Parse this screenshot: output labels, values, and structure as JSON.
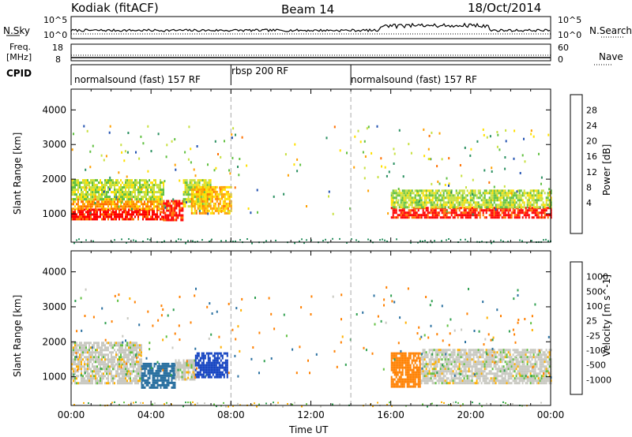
{
  "header": {
    "station": "Kodiak (fitACF)",
    "beam": "Beam 14",
    "date": "18/Oct/2014"
  },
  "noise_panel": {
    "left_label": "N.Sky",
    "left_ticks": [
      "10^5",
      "10^0"
    ],
    "right_ticks": [
      "10^5",
      "10^0"
    ],
    "right_label": "N.Search"
  },
  "freq_panel": {
    "left_label_1": "Freq.",
    "left_label_2": "[MHz]",
    "left_ticks": [
      "18",
      "8"
    ],
    "right_ticks": [
      "60",
      "0"
    ],
    "right_label": "Nave"
  },
  "cpid": {
    "label": "CPID",
    "segments": [
      {
        "name": "normalsound (fast) 157 RF",
        "start_hour": 0,
        "end_hour": 8
      },
      {
        "name": "rbsp 200 RF",
        "start_hour": 8,
        "end_hour": 14
      },
      {
        "name": "normalsound (fast) 157 RF",
        "start_hour": 14,
        "end_hour": 24
      }
    ]
  },
  "chart_data": [
    {
      "type": "heatmap",
      "title": "Power",
      "ylabel": "Slant Range [km]",
      "xlabel": "Time UT",
      "xlim_hours": [
        0,
        24
      ],
      "ylim": [
        180,
        4600
      ],
      "y_ticks": [
        1000,
        2000,
        3000,
        4000
      ],
      "colorbar": {
        "label": "Power [dB]",
        "ticks": [
          "28",
          "24",
          "20",
          "16",
          "12",
          "8",
          "4"
        ],
        "colors": [
          "#ff0000",
          "#ff7000",
          "#ffa000",
          "#ffe000",
          "#c8e040",
          "#60c040",
          "#2a9060",
          "#2050b0",
          "#0030ff"
        ]
      },
      "regions": [
        {
          "t0": 0.0,
          "t1": 4.6,
          "r0": 850,
          "r1": 1150,
          "value": 28
        },
        {
          "t0": 0.0,
          "t1": 4.6,
          "r0": 1150,
          "r1": 1450,
          "value": 22
        },
        {
          "t0": 0.0,
          "t1": 4.6,
          "r0": 1450,
          "r1": 2000,
          "value": 14
        },
        {
          "t0": 4.6,
          "t1": 5.6,
          "r0": 800,
          "r1": 1400,
          "value": 28
        },
        {
          "t0": 5.6,
          "t1": 7.0,
          "r0": 1200,
          "r1": 2000,
          "value": 14
        },
        {
          "t0": 6.0,
          "t1": 8.0,
          "r0": 1000,
          "r1": 1800,
          "value": 20
        },
        {
          "t0": 16.0,
          "t1": 24.0,
          "r0": 900,
          "r1": 1200,
          "value": 28
        },
        {
          "t0": 16.0,
          "t1": 24.0,
          "r0": 1200,
          "r1": 1700,
          "value": 14
        }
      ]
    },
    {
      "type": "heatmap",
      "title": "Velocity",
      "ylabel": "Slant Range [km]",
      "xlabel": "Time UT",
      "xlim_hours": [
        0,
        24
      ],
      "ylim": [
        180,
        4600
      ],
      "y_ticks": [
        1000,
        2000,
        3000,
        4000
      ],
      "colorbar": {
        "label": "Velocity [m s^-1]",
        "ticks": [
          "1000",
          "500",
          "100",
          "25",
          "-25",
          "-100",
          "-500",
          "-1000"
        ],
        "colors": [
          "#1040c0",
          "#2a70a0",
          "#30a050",
          "#60c040",
          "#c8c8c0",
          "#ffb000",
          "#ff8000",
          "#ff4000",
          "#ff0000"
        ]
      },
      "regions": [
        {
          "t0": 0.0,
          "t1": 3.5,
          "r0": 800,
          "r1": 2000,
          "value": 0
        },
        {
          "t0": 3.5,
          "t1": 5.2,
          "r0": 700,
          "r1": 1400,
          "value": 300
        },
        {
          "t0": 5.2,
          "t1": 6.2,
          "r0": 900,
          "r1": 1500,
          "value": 0
        },
        {
          "t0": 6.2,
          "t1": 7.8,
          "r0": 1000,
          "r1": 1700,
          "value": 1000
        },
        {
          "t0": 16.0,
          "t1": 17.5,
          "r0": 700,
          "r1": 1700,
          "value": -300
        },
        {
          "t0": 17.5,
          "t1": 24.0,
          "r0": 800,
          "r1": 1800,
          "value": 0
        }
      ]
    }
  ],
  "x_axis": {
    "label": "Time UT",
    "ticks": [
      "00:00",
      "04:00",
      "08:00",
      "12:00",
      "16:00",
      "20:00",
      "00:00"
    ]
  }
}
